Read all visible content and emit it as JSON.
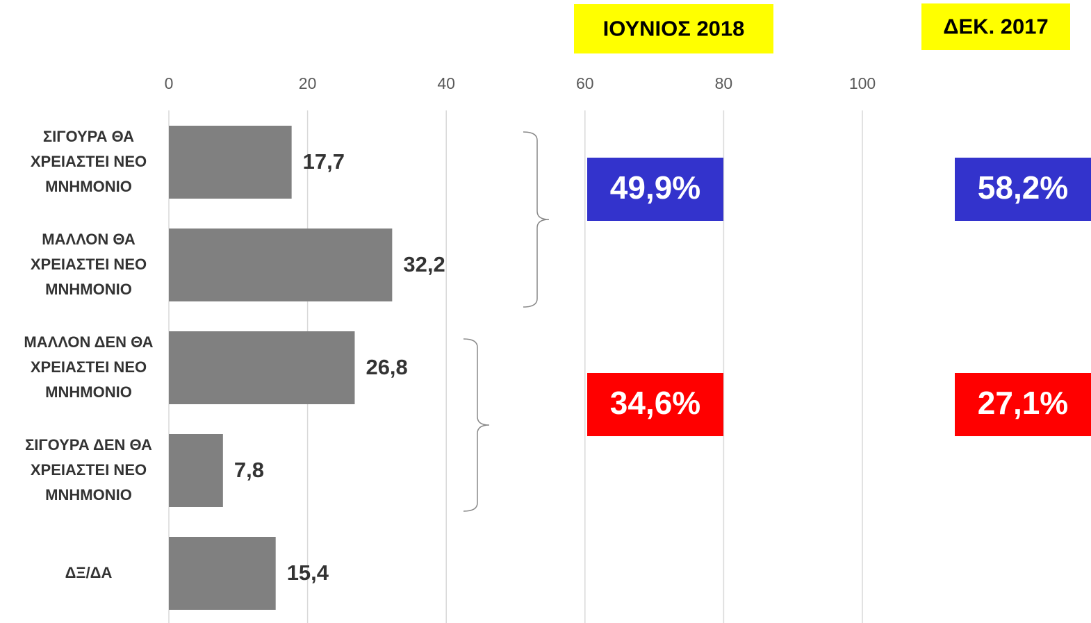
{
  "chart_data": {
    "type": "barh",
    "categories": [
      "ΣΙΓΟΥΡΑ ΘΑ ΧΡΕΙΑΣΤΕΙ ΝΕΟ ΜΝΗΜΟΝΙΟ",
      "ΜΑΛΛΟΝ ΘΑ ΧΡΕΙΑΣΤΕΙ ΝΕΟ ΜΝΗΜΟΝΙΟ",
      "ΜΑΛΛΟΝ ΔΕΝ ΘΑ ΧΡΕΙΑΣΤΕΙ ΝΕΟ ΜΝΗΜΟΝΙΟ",
      "ΣΙΓΟΥΡΑ ΔΕΝ ΘΑ ΧΡΕΙΑΣΤΕΙ ΝΕΟ ΜΝΗΜΟΝΙΟ",
      "ΔΞ/ΔΑ"
    ],
    "values": [
      17.7,
      32.2,
      26.8,
      7.8,
      15.4
    ],
    "value_labels": [
      "17,7",
      "32,2",
      "26,8",
      "7,8",
      "15,4"
    ],
    "color": "#808080",
    "xlim": [
      0,
      100
    ],
    "xticks": [
      0,
      20,
      40,
      60,
      80,
      100
    ],
    "grid": true,
    "summary": {
      "columns": [
        "ΙΟΥΝΙΟΣ 2018",
        "ΔΕΚ. 2017"
      ],
      "rows": [
        {
          "color": "#3333cc",
          "values": [
            49.9,
            58.2
          ],
          "labels": [
            "49,9%",
            "58,2%"
          ]
        },
        {
          "color": "#ff0000",
          "values": [
            34.6,
            27.1
          ],
          "labels": [
            "34,6%",
            "27,1%"
          ]
        }
      ]
    }
  }
}
